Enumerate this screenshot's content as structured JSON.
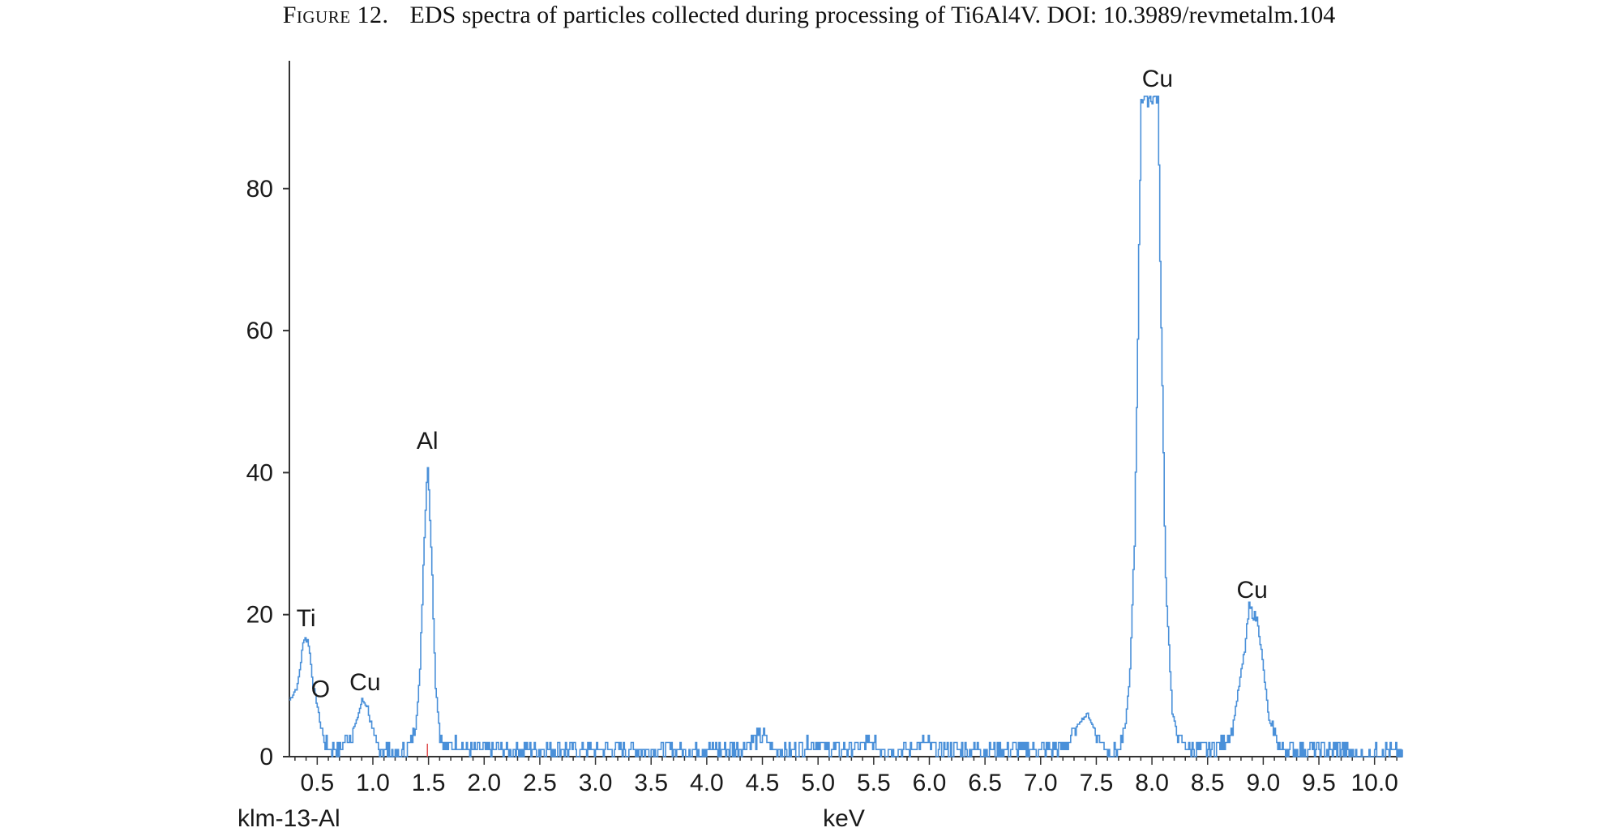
{
  "caption": {
    "lead": "Figure 12.",
    "text": "EDS spectra of particles collected during processing of Ti6Al4V. DOI: 10.3989/revmetalm.104"
  },
  "chart_data": {
    "type": "line",
    "title": "",
    "xlabel": "keV",
    "sample_label": "klm-13-Al",
    "ylabel": "",
    "xlim": [
      0.25,
      10.25
    ],
    "ylim": [
      0,
      98
    ],
    "x_ticks": [
      "0.5",
      "1.0",
      "1.5",
      "2.0",
      "2.5",
      "3.0",
      "3.5",
      "4.0",
      "4.5",
      "5.0",
      "5.5",
      "6.0",
      "6.5",
      "7.0",
      "7.5",
      "8.0",
      "8.5",
      "9.0",
      "9.5",
      "10.0"
    ],
    "y_ticks": [
      "0",
      "20",
      "40",
      "60",
      "80"
    ],
    "line_color": "#4a90d9",
    "marker_color": "#e05050",
    "marker_x": 1.49,
    "peak_labels": [
      {
        "text": "Ti",
        "x": 0.4,
        "y": 17
      },
      {
        "text": "O",
        "x": 0.53,
        "y": 7
      },
      {
        "text": "Cu",
        "x": 0.93,
        "y": 8
      },
      {
        "text": "Al",
        "x": 1.49,
        "y": 42
      },
      {
        "text": "Cu",
        "x": 8.05,
        "y": 93
      },
      {
        "text": "Cu",
        "x": 8.9,
        "y": 21
      }
    ],
    "series": [
      {
        "x": [
          0.25,
          0.32,
          0.38,
          0.42,
          0.46,
          0.5,
          0.53,
          0.57,
          0.62,
          0.7,
          0.8,
          0.85,
          0.9,
          0.95,
          0.99,
          1.05,
          1.12,
          1.2,
          1.3,
          1.38,
          1.42,
          1.46,
          1.49,
          1.52,
          1.56,
          1.6,
          1.66,
          1.75,
          1.85,
          2.0,
          2.2,
          2.4,
          2.6,
          2.8,
          3.0,
          3.2,
          3.4,
          3.6,
          3.8,
          4.0,
          4.2,
          4.4,
          4.5,
          4.6,
          4.8,
          4.95,
          5.1,
          5.3,
          5.45,
          5.6,
          5.8,
          5.95,
          6.1,
          6.3,
          6.5,
          6.7,
          6.9,
          7.1,
          7.25,
          7.35,
          7.42,
          7.5,
          7.6,
          7.7,
          7.75,
          7.8,
          7.84,
          7.87,
          7.9,
          7.93,
          8.0,
          8.05,
          8.08,
          8.12,
          8.18,
          8.25,
          8.35,
          8.5,
          8.65,
          8.72,
          8.78,
          8.83,
          8.87,
          8.91,
          8.95,
          9.0,
          9.05,
          9.15,
          9.3,
          9.5,
          9.7,
          9.9,
          10.05,
          10.15,
          10.25
        ],
        "y": [
          8,
          10,
          17,
          16,
          10,
          7,
          4,
          2,
          1,
          1,
          3,
          5,
          8,
          7,
          3,
          1,
          1,
          0,
          1,
          4,
          12,
          32,
          42,
          30,
          10,
          3,
          1,
          2,
          1,
          1,
          1,
          1,
          1,
          1,
          1,
          1,
          1,
          1,
          1,
          1,
          1,
          2,
          3,
          1,
          1,
          2,
          1,
          1,
          2,
          1,
          1,
          2,
          1,
          1,
          1,
          1,
          1,
          1,
          2,
          5,
          6,
          3,
          1,
          1,
          3,
          12,
          30,
          60,
          93,
          93,
          93,
          93,
          60,
          25,
          6,
          2,
          1,
          1,
          2,
          4,
          10,
          15,
          21,
          20,
          19,
          12,
          5,
          1,
          1,
          1,
          1,
          0,
          1,
          1,
          0
        ]
      }
    ]
  }
}
